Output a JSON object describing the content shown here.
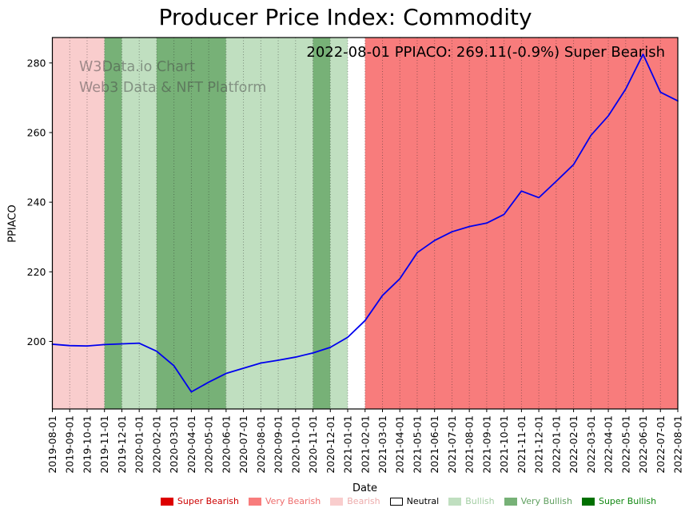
{
  "chart": {
    "title": "Producer Price Index: Commodity",
    "annotation": "2022-08-01 PPIACO: 269.11(-0.9%) Super Bearish",
    "watermark_line1": "W3Data.io Chart",
    "watermark_line2": "Web3 Data & NFT Platform",
    "xlabel": "Date",
    "ylabel": "PPIACO"
  },
  "chart_data": {
    "type": "line",
    "title": "Producer Price Index: Commodity",
    "xlabel": "Date",
    "ylabel": "PPIACO",
    "ylim": [
      180.6,
      287.3
    ],
    "yticks": [
      200,
      220,
      240,
      260,
      280
    ],
    "grid": "vertical dotted monthly gridlines",
    "legend_position": "bottom",
    "line_color": "#0000ee",
    "x": [
      "2019-08-01",
      "2019-09-01",
      "2019-10-01",
      "2019-11-01",
      "2019-12-01",
      "2020-01-01",
      "2020-02-01",
      "2020-03-01",
      "2020-04-01",
      "2020-05-01",
      "2020-06-01",
      "2020-07-01",
      "2020-08-01",
      "2020-09-01",
      "2020-10-01",
      "2020-11-01",
      "2020-12-01",
      "2021-01-01",
      "2021-02-01",
      "2021-03-01",
      "2021-04-01",
      "2021-05-01",
      "2021-06-01",
      "2021-07-01",
      "2021-08-01",
      "2021-09-01",
      "2021-10-01",
      "2021-11-01",
      "2021-12-01",
      "2022-01-01",
      "2022-02-01",
      "2022-03-01",
      "2022-04-01",
      "2022-05-01",
      "2022-06-01",
      "2022-07-01",
      "2022-08-01"
    ],
    "values": [
      199.2,
      198.8,
      198.7,
      199.1,
      199.3,
      199.5,
      197.2,
      193.0,
      185.5,
      188.3,
      190.8,
      192.3,
      193.8,
      194.6,
      195.5,
      196.7,
      198.3,
      201.2,
      206.0,
      213.2,
      218.0,
      225.5,
      229.0,
      231.5,
      233.0,
      234.0,
      236.5,
      243.2,
      241.3,
      246.0,
      250.8,
      259.2,
      264.8,
      272.5,
      282.5,
      271.6,
      269.11
    ],
    "last_point": {
      "date": "2022-08-01",
      "value": 269.11,
      "change_pct": -0.9,
      "sentiment": "Super Bearish"
    },
    "bands": [
      {
        "from": "2019-08-01",
        "to": "2019-11-01",
        "sentiment": "Bearish"
      },
      {
        "from": "2019-11-01",
        "to": "2019-12-01",
        "sentiment": "Very Bullish"
      },
      {
        "from": "2019-12-01",
        "to": "2020-02-01",
        "sentiment": "Bullish"
      },
      {
        "from": "2020-02-01",
        "to": "2020-06-01",
        "sentiment": "Very Bullish"
      },
      {
        "from": "2020-06-01",
        "to": "2020-11-01",
        "sentiment": "Bullish"
      },
      {
        "from": "2020-11-01",
        "to": "2020-12-01",
        "sentiment": "Very Bullish"
      },
      {
        "from": "2020-12-01",
        "to": "2021-01-01",
        "sentiment": "Bullish"
      },
      {
        "from": "2021-01-01",
        "to": "2021-02-01",
        "sentiment": "Neutral"
      },
      {
        "from": "2021-02-01",
        "to": "2022-08-01",
        "sentiment": "Very Bearish"
      }
    ],
    "sentiment_colors": {
      "Super Bearish": "#dd0000",
      "Very Bearish": "#f87c7c",
      "Bearish": "#f9cdcd",
      "Neutral": "#ffffff",
      "Bullish": "#c0dfc0",
      "Very Bullish": "#77b177",
      "Super Bullish": "#007000"
    },
    "legend": [
      {
        "label": "Super Bearish",
        "swatch": "#dd0000",
        "text_color": "#cc0000"
      },
      {
        "label": "Very Bearish",
        "swatch": "#f87c7c",
        "text_color": "#ee6c6c"
      },
      {
        "label": "Bearish",
        "swatch": "#f9cdcd",
        "text_color": "#edabab"
      },
      {
        "label": "Neutral",
        "swatch": "#ffffff",
        "text_color": "#000000"
      },
      {
        "label": "Bullish",
        "swatch": "#c0dfc0",
        "text_color": "#a3cda3"
      },
      {
        "label": "Very Bullish",
        "swatch": "#77b177",
        "text_color": "#5f9f5f"
      },
      {
        "label": "Super Bullish",
        "swatch": "#007000",
        "text_color": "#118811"
      }
    ]
  }
}
